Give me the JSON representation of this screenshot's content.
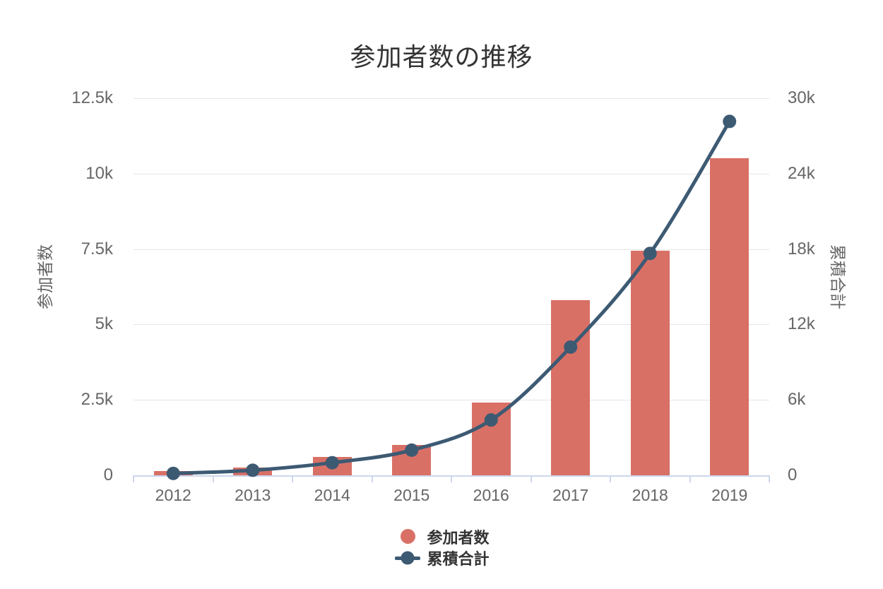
{
  "chart_data": {
    "type": "combo-bar-line",
    "title": "参加者数の推移",
    "categories": [
      "2012",
      "2013",
      "2014",
      "2015",
      "2016",
      "2017",
      "2018",
      "2019"
    ],
    "series": [
      {
        "name": "参加者数",
        "type": "bar",
        "yaxis": "left",
        "color": "#d97066",
        "values": [
          150,
          250,
          600,
          1000,
          2400,
          5800,
          7450,
          10500
        ]
      },
      {
        "name": "累積合計",
        "type": "line",
        "yaxis": "right",
        "color": "#3d5a73",
        "values": [
          150,
          400,
          1000,
          2000,
          4400,
          10200,
          17650,
          28150
        ]
      }
    ],
    "left_axis": {
      "title": "参加者数",
      "min": 0,
      "max": 12500,
      "ticks": [
        {
          "label": "0",
          "value": 0
        },
        {
          "label": "2.5k",
          "value": 2500
        },
        {
          "label": "5k",
          "value": 5000
        },
        {
          "label": "7.5k",
          "value": 7500
        },
        {
          "label": "10k",
          "value": 10000
        },
        {
          "label": "12.5k",
          "value": 12500
        }
      ]
    },
    "right_axis": {
      "title": "累積合計",
      "min": 0,
      "max": 30000,
      "ticks": [
        {
          "label": "0",
          "value": 0
        },
        {
          "label": "6k",
          "value": 6000
        },
        {
          "label": "12k",
          "value": 12000
        },
        {
          "label": "18k",
          "value": 18000
        },
        {
          "label": "24k",
          "value": 24000
        },
        {
          "label": "30k",
          "value": 30000
        }
      ]
    },
    "legend": {
      "layout": "vertical",
      "position": "bottom-center"
    },
    "style": {
      "grid_color": "#e6e6e6",
      "axis_color": "#ccd6eb",
      "title_color": "#333333",
      "label_color": "#666666",
      "background": "#ffffff"
    }
  }
}
